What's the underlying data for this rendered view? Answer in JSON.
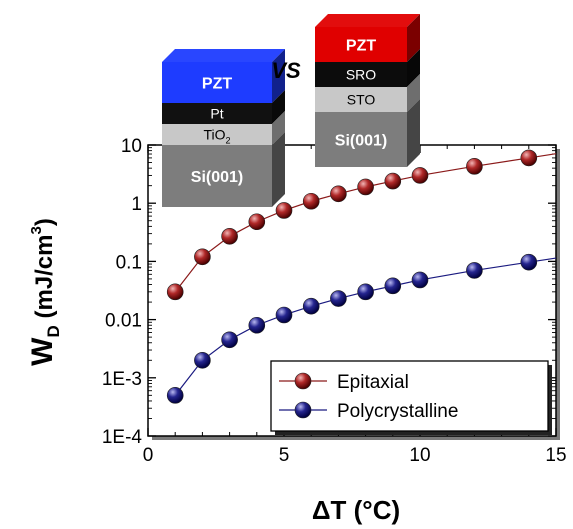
{
  "chart_data": {
    "type": "scatter",
    "xlabel": "ΔT (°C)",
    "ylabel": {
      "main": "W",
      "sub": "D",
      "unit_prefix": " (mJ/cm",
      "unit_sup": "3",
      "unit_suffix": ")"
    },
    "xlim": [
      0,
      15
    ],
    "ylim": [
      0.0001,
      10
    ],
    "yscale": "log",
    "x_ticks": [
      0,
      5,
      10,
      15
    ],
    "y_ticks": [
      {
        "value": 0.0001,
        "label": "1E-4"
      },
      {
        "value": 0.001,
        "label": "1E-3"
      },
      {
        "value": 0.01,
        "label": "0.01"
      },
      {
        "value": 0.1,
        "label": "0.1"
      },
      {
        "value": 1,
        "label": "1"
      },
      {
        "value": 10,
        "label": "10"
      }
    ],
    "grid": false,
    "legend_position": "bottom-right",
    "series": [
      {
        "name": "Epitaxial",
        "color": "#8b1a1a",
        "x": [
          1,
          2,
          3,
          4,
          5,
          6,
          7,
          8,
          9,
          10,
          12,
          14
        ],
        "y": [
          0.03,
          0.12,
          0.27,
          0.48,
          0.75,
          1.08,
          1.45,
          1.9,
          2.4,
          3.0,
          4.3,
          6.0
        ]
      },
      {
        "name": "Polycrystalline",
        "color": "#1a1a80",
        "x": [
          1,
          2,
          3,
          4,
          5,
          6,
          7,
          8,
          9,
          10,
          12,
          14
        ],
        "y": [
          0.0005,
          0.002,
          0.0045,
          0.008,
          0.012,
          0.017,
          0.023,
          0.03,
          0.038,
          0.048,
          0.07,
          0.097
        ]
      }
    ]
  },
  "inset_left": {
    "layers": [
      {
        "label": "PZT",
        "color": "#1e3cff",
        "bold": true,
        "light": true
      },
      {
        "label": "Pt",
        "color": "#111111",
        "bold": false,
        "light": true
      },
      {
        "label": "TiO",
        "sub": "2",
        "color": "#c8c8c8",
        "bold": false,
        "light": false
      },
      {
        "label": "Si(001)",
        "color": "#7d7d7d",
        "bold": true,
        "light": true
      }
    ]
  },
  "vs_label": "VS",
  "inset_right": {
    "layers": [
      {
        "label": "PZT",
        "color": "#e00000",
        "bold": true,
        "light": true
      },
      {
        "label": "SRO",
        "color": "#0c0c0c",
        "bold": false,
        "light": true
      },
      {
        "label": "STO",
        "color": "#c8c8c8",
        "bold": false,
        "light": false
      },
      {
        "label": "Si(001)",
        "color": "#7d7d7d",
        "bold": true,
        "light": true
      }
    ]
  }
}
